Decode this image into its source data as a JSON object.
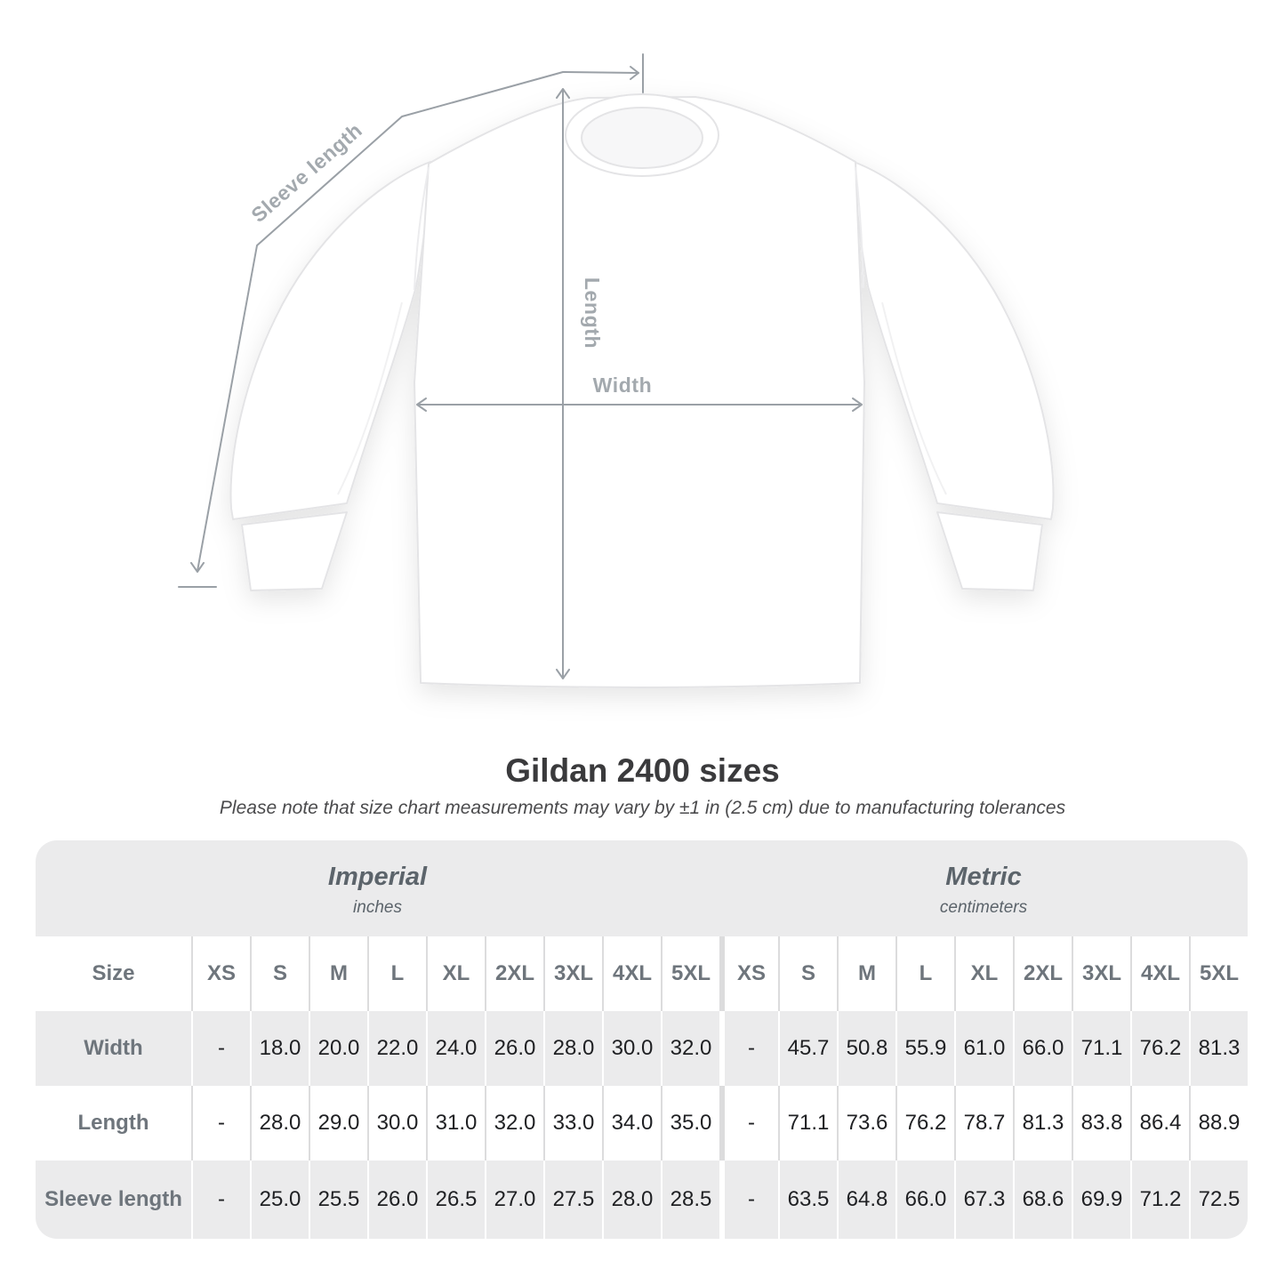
{
  "diagram": {
    "labels": {
      "sleeve_length": "Sleeve length",
      "length": "Length",
      "width": "Width"
    }
  },
  "title": "Gildan 2400 sizes",
  "subtitle": "Please note that size chart measurements may vary by ±1 in (2.5 cm) due to manufacturing tolerances",
  "table": {
    "sections": [
      {
        "label": "Imperial",
        "unit": "inches"
      },
      {
        "label": "Metric",
        "unit": "centimeters"
      }
    ],
    "size_column_header": "Size",
    "sizes": [
      "XS",
      "S",
      "M",
      "L",
      "XL",
      "2XL",
      "3XL",
      "4XL",
      "5XL"
    ],
    "rows": [
      {
        "label": "Width",
        "imperial": [
          "-",
          "18.0",
          "20.0",
          "22.0",
          "24.0",
          "26.0",
          "28.0",
          "30.0",
          "32.0"
        ],
        "metric": [
          "-",
          "45.7",
          "50.8",
          "55.9",
          "61.0",
          "66.0",
          "71.1",
          "76.2",
          "81.3"
        ]
      },
      {
        "label": "Length",
        "imperial": [
          "-",
          "28.0",
          "29.0",
          "30.0",
          "31.0",
          "32.0",
          "33.0",
          "34.0",
          "35.0"
        ],
        "metric": [
          "-",
          "71.1",
          "73.6",
          "76.2",
          "78.7",
          "81.3",
          "83.8",
          "86.4",
          "88.9"
        ]
      },
      {
        "label": "Sleeve length",
        "imperial": [
          "-",
          "25.0",
          "25.5",
          "26.0",
          "26.5",
          "27.0",
          "27.5",
          "28.0",
          "28.5"
        ],
        "metric": [
          "-",
          "63.5",
          "64.8",
          "66.0",
          "67.3",
          "68.6",
          "69.9",
          "71.2",
          "72.5"
        ]
      }
    ]
  },
  "colors": {
    "arrow": "#9aa0a6",
    "diagram_label": "#a3a9ae",
    "table_band": "#ebebec",
    "header_text": "#6e757c",
    "value_text": "#1f2023",
    "title_text": "#3a3a3c"
  }
}
